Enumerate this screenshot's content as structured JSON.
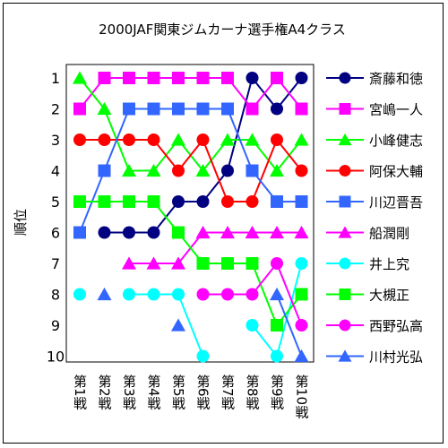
{
  "chart_data": {
    "type": "line",
    "title": "2000JAF関東ジムカーナ選手権A4クラス",
    "ylabel": "順位",
    "xlabel": "",
    "categories": [
      "第1戦",
      "第2戦",
      "第3戦",
      "第4戦",
      "第5戦",
      "第6戦",
      "第7戦",
      "第8戦",
      "第9戦",
      "第10戦"
    ],
    "y_ticks": [
      "1",
      "2",
      "3",
      "4",
      "5",
      "6",
      "7",
      "8",
      "9",
      "10"
    ],
    "ylim": [
      1,
      10
    ],
    "y_inverted": true,
    "grid": false,
    "legend_position": "right",
    "series": [
      {
        "name": "斎藤和徳",
        "color": "#000080",
        "marker": "circle",
        "values": [
          null,
          6,
          6,
          6,
          5,
          5,
          4,
          1,
          2,
          1
        ]
      },
      {
        "name": "宮嶋一人",
        "color": "#ff00ff",
        "marker": "square",
        "values": [
          2,
          1,
          1,
          1,
          1,
          1,
          1,
          2,
          1,
          2
        ]
      },
      {
        "name": "小峰健志",
        "color": "#00ff00",
        "marker": "triangle",
        "values": [
          1,
          2,
          4,
          4,
          3,
          4,
          3,
          3,
          4,
          3
        ]
      },
      {
        "name": "阿保大輔",
        "color": "#ff0000",
        "marker": "circle",
        "values": [
          3,
          3,
          3,
          3,
          4,
          3,
          5,
          5,
          3,
          4
        ]
      },
      {
        "name": "川辺晋吾",
        "color": "#3366ff",
        "marker": "square",
        "values": [
          6,
          4,
          2,
          2,
          2,
          2,
          2,
          4,
          5,
          5
        ]
      },
      {
        "name": "船潤剛",
        "color": "#ff00ff",
        "marker": "triangle",
        "values": [
          null,
          null,
          7,
          7,
          7,
          6,
          6,
          6,
          6,
          6
        ]
      },
      {
        "name": "井上究",
        "color": "#00ffff",
        "marker": "circle",
        "values": [
          8,
          null,
          8,
          8,
          8,
          10,
          null,
          9,
          10,
          7
        ]
      },
      {
        "name": "大槻正",
        "color": "#00ff00",
        "marker": "square",
        "values": [
          5,
          5,
          5,
          5,
          6,
          7,
          7,
          7,
          9,
          8
        ]
      },
      {
        "name": "西野弘高",
        "color": "#ff00ff",
        "marker": "circle",
        "values": [
          null,
          null,
          null,
          null,
          null,
          8,
          8,
          8,
          7,
          9
        ]
      },
      {
        "name": "川村光弘",
        "color": "#3366ff",
        "marker": "triangle",
        "values": [
          null,
          8,
          null,
          null,
          9,
          null,
          null,
          null,
          8,
          10
        ]
      }
    ]
  }
}
